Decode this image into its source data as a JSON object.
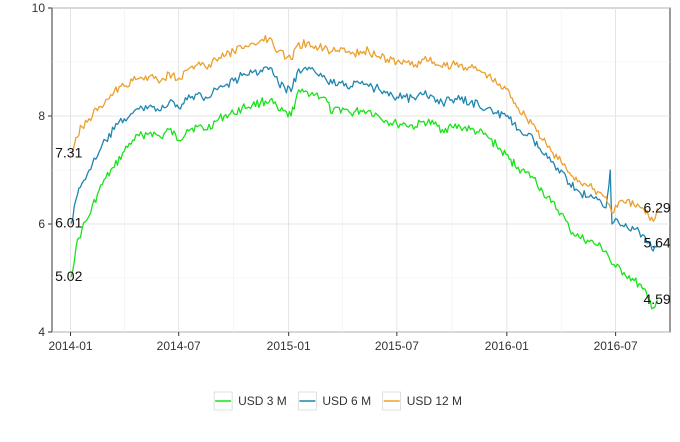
{
  "chart_data": {
    "type": "line",
    "title": "",
    "xlabel": "",
    "ylabel": "",
    "x_axis": {
      "type": "date",
      "range": [
        "2013-12-01",
        "2016-09-30"
      ],
      "ticks": [
        {
          "label": "2014-01",
          "date": "2014-01-01"
        },
        {
          "label": "2014-07",
          "date": "2014-07-01"
        },
        {
          "label": "2015-01",
          "date": "2015-01-01"
        },
        {
          "label": "2015-07",
          "date": "2015-07-01"
        },
        {
          "label": "2016-01",
          "date": "2016-01-01"
        },
        {
          "label": "2016-07",
          "date": "2016-07-01"
        }
      ]
    },
    "y_axis": {
      "range": [
        4,
        10
      ],
      "ticks": [
        4,
        6,
        8,
        10
      ]
    },
    "grid": true,
    "legend": "bottom",
    "series": [
      {
        "name": "USD 3 M",
        "color": "#19e319",
        "start_label": "5.02",
        "end_label": "4.59",
        "points": [
          [
            "2014-01-02",
            5.02
          ],
          [
            "2014-01-10",
            5.55
          ],
          [
            "2014-01-20",
            5.9
          ],
          [
            "2014-02-01",
            6.15
          ],
          [
            "2014-02-15",
            6.55
          ],
          [
            "2014-03-01",
            6.85
          ],
          [
            "2014-03-15",
            7.05
          ],
          [
            "2014-04-01",
            7.35
          ],
          [
            "2014-04-15",
            7.55
          ],
          [
            "2014-05-01",
            7.65
          ],
          [
            "2014-05-15",
            7.7
          ],
          [
            "2014-06-01",
            7.6
          ],
          [
            "2014-06-15",
            7.75
          ],
          [
            "2014-07-01",
            7.55
          ],
          [
            "2014-07-15",
            7.75
          ],
          [
            "2014-08-01",
            7.8
          ],
          [
            "2014-08-15",
            7.75
          ],
          [
            "2014-09-01",
            7.9
          ],
          [
            "2014-09-15",
            8.0
          ],
          [
            "2014-10-01",
            8.05
          ],
          [
            "2014-10-15",
            8.15
          ],
          [
            "2014-11-01",
            8.2
          ],
          [
            "2014-11-15",
            8.25
          ],
          [
            "2014-12-01",
            8.3
          ],
          [
            "2014-12-15",
            8.1
          ],
          [
            "2015-01-05",
            8.0
          ],
          [
            "2015-01-15",
            8.4
          ],
          [
            "2015-02-01",
            8.45
          ],
          [
            "2015-02-15",
            8.4
          ],
          [
            "2015-03-01",
            8.35
          ],
          [
            "2015-03-15",
            8.05
          ],
          [
            "2015-04-01",
            8.15
          ],
          [
            "2015-04-15",
            8.05
          ],
          [
            "2015-05-01",
            8.1
          ],
          [
            "2015-05-15",
            8.1
          ],
          [
            "2015-06-01",
            8.0
          ],
          [
            "2015-06-15",
            7.9
          ],
          [
            "2015-07-01",
            7.85
          ],
          [
            "2015-07-15",
            7.85
          ],
          [
            "2015-08-01",
            7.8
          ],
          [
            "2015-08-15",
            7.9
          ],
          [
            "2015-09-01",
            7.85
          ],
          [
            "2015-09-15",
            7.75
          ],
          [
            "2015-10-01",
            7.8
          ],
          [
            "2015-10-15",
            7.8
          ],
          [
            "2015-11-01",
            7.75
          ],
          [
            "2015-11-15",
            7.7
          ],
          [
            "2015-12-01",
            7.6
          ],
          [
            "2015-12-15",
            7.45
          ],
          [
            "2016-01-05",
            7.2
          ],
          [
            "2016-01-20",
            7.05
          ],
          [
            "2016-02-01",
            6.95
          ],
          [
            "2016-02-15",
            6.85
          ],
          [
            "2016-03-01",
            6.6
          ],
          [
            "2016-03-15",
            6.4
          ],
          [
            "2016-04-01",
            6.2
          ],
          [
            "2016-04-15",
            5.9
          ],
          [
            "2016-05-01",
            5.75
          ],
          [
            "2016-05-15",
            5.7
          ],
          [
            "2016-06-01",
            5.6
          ],
          [
            "2016-06-15",
            5.5
          ],
          [
            "2016-06-25",
            5.25
          ],
          [
            "2016-07-01",
            5.2
          ],
          [
            "2016-07-15",
            5.1
          ],
          [
            "2016-08-01",
            4.95
          ],
          [
            "2016-08-15",
            4.8
          ],
          [
            "2016-08-25",
            4.6
          ],
          [
            "2016-09-02",
            4.45
          ],
          [
            "2016-09-09",
            4.59
          ]
        ]
      },
      {
        "name": "USD 6 M",
        "color": "#1f86b0",
        "start_label": "6.01",
        "end_label": "5.64",
        "points": [
          [
            "2014-01-02",
            6.01
          ],
          [
            "2014-01-10",
            6.45
          ],
          [
            "2014-01-20",
            6.75
          ],
          [
            "2014-02-01",
            7.0
          ],
          [
            "2014-02-15",
            7.25
          ],
          [
            "2014-03-01",
            7.55
          ],
          [
            "2014-03-15",
            7.75
          ],
          [
            "2014-04-01",
            7.95
          ],
          [
            "2014-04-15",
            8.05
          ],
          [
            "2014-05-01",
            8.15
          ],
          [
            "2014-05-15",
            8.2
          ],
          [
            "2014-06-01",
            8.1
          ],
          [
            "2014-06-15",
            8.25
          ],
          [
            "2014-07-01",
            8.15
          ],
          [
            "2014-07-15",
            8.3
          ],
          [
            "2014-08-01",
            8.4
          ],
          [
            "2014-08-15",
            8.35
          ],
          [
            "2014-09-01",
            8.5
          ],
          [
            "2014-09-15",
            8.55
          ],
          [
            "2014-10-01",
            8.65
          ],
          [
            "2014-10-15",
            8.75
          ],
          [
            "2014-11-01",
            8.8
          ],
          [
            "2014-11-15",
            8.85
          ],
          [
            "2014-12-01",
            8.9
          ],
          [
            "2014-12-15",
            8.6
          ],
          [
            "2015-01-05",
            8.45
          ],
          [
            "2015-01-15",
            8.8
          ],
          [
            "2015-02-01",
            8.85
          ],
          [
            "2015-02-15",
            8.8
          ],
          [
            "2015-03-01",
            8.75
          ],
          [
            "2015-03-15",
            8.6
          ],
          [
            "2015-04-01",
            8.65
          ],
          [
            "2015-04-15",
            8.55
          ],
          [
            "2015-05-01",
            8.6
          ],
          [
            "2015-05-15",
            8.55
          ],
          [
            "2015-06-01",
            8.5
          ],
          [
            "2015-06-15",
            8.45
          ],
          [
            "2015-07-01",
            8.35
          ],
          [
            "2015-07-15",
            8.35
          ],
          [
            "2015-08-01",
            8.3
          ],
          [
            "2015-08-15",
            8.4
          ],
          [
            "2015-09-01",
            8.35
          ],
          [
            "2015-09-15",
            8.25
          ],
          [
            "2015-10-01",
            8.3
          ],
          [
            "2015-10-15",
            8.3
          ],
          [
            "2015-11-01",
            8.25
          ],
          [
            "2015-11-15",
            8.2
          ],
          [
            "2015-12-01",
            8.15
          ],
          [
            "2015-12-15",
            8.05
          ],
          [
            "2016-01-05",
            7.95
          ],
          [
            "2016-01-20",
            7.75
          ],
          [
            "2016-02-01",
            7.65
          ],
          [
            "2016-02-15",
            7.55
          ],
          [
            "2016-03-01",
            7.3
          ],
          [
            "2016-03-15",
            7.15
          ],
          [
            "2016-04-01",
            7.0
          ],
          [
            "2016-04-15",
            6.75
          ],
          [
            "2016-05-01",
            6.6
          ],
          [
            "2016-05-15",
            6.5
          ],
          [
            "2016-06-01",
            6.45
          ],
          [
            "2016-06-15",
            6.3
          ],
          [
            "2016-06-22",
            7.0
          ],
          [
            "2016-06-25",
            6.0
          ],
          [
            "2016-07-01",
            6.1
          ],
          [
            "2016-07-15",
            5.95
          ],
          [
            "2016-08-01",
            5.9
          ],
          [
            "2016-08-15",
            5.8
          ],
          [
            "2016-08-25",
            5.65
          ],
          [
            "2016-09-02",
            5.5
          ],
          [
            "2016-09-09",
            5.64
          ]
        ]
      },
      {
        "name": "USD 12 M",
        "color": "#eba02e",
        "start_label": "7.31",
        "end_label": "6.29",
        "points": [
          [
            "2014-01-02",
            7.31
          ],
          [
            "2014-01-10",
            7.6
          ],
          [
            "2014-01-20",
            7.8
          ],
          [
            "2014-02-01",
            7.95
          ],
          [
            "2014-02-15",
            8.1
          ],
          [
            "2014-03-01",
            8.3
          ],
          [
            "2014-03-15",
            8.45
          ],
          [
            "2014-04-01",
            8.55
          ],
          [
            "2014-04-15",
            8.65
          ],
          [
            "2014-05-01",
            8.7
          ],
          [
            "2014-05-15",
            8.75
          ],
          [
            "2014-06-01",
            8.65
          ],
          [
            "2014-06-15",
            8.8
          ],
          [
            "2014-07-01",
            8.7
          ],
          [
            "2014-07-15",
            8.85
          ],
          [
            "2014-08-01",
            8.95
          ],
          [
            "2014-08-15",
            8.9
          ],
          [
            "2014-09-01",
            9.05
          ],
          [
            "2014-09-15",
            9.1
          ],
          [
            "2014-10-01",
            9.2
          ],
          [
            "2014-10-15",
            9.25
          ],
          [
            "2014-11-01",
            9.35
          ],
          [
            "2014-11-15",
            9.4
          ],
          [
            "2014-12-01",
            9.45
          ],
          [
            "2014-12-15",
            9.2
          ],
          [
            "2015-01-05",
            9.05
          ],
          [
            "2015-01-15",
            9.3
          ],
          [
            "2015-02-01",
            9.35
          ],
          [
            "2015-02-15",
            9.3
          ],
          [
            "2015-03-01",
            9.25
          ],
          [
            "2015-03-15",
            9.2
          ],
          [
            "2015-04-01",
            9.25
          ],
          [
            "2015-04-15",
            9.15
          ],
          [
            "2015-05-01",
            9.2
          ],
          [
            "2015-05-15",
            9.2
          ],
          [
            "2015-06-01",
            9.1
          ],
          [
            "2015-06-15",
            9.05
          ],
          [
            "2015-07-01",
            9.0
          ],
          [
            "2015-07-15",
            9.0
          ],
          [
            "2015-08-01",
            8.95
          ],
          [
            "2015-08-15",
            9.05
          ],
          [
            "2015-09-01",
            9.0
          ],
          [
            "2015-09-15",
            8.9
          ],
          [
            "2015-10-01",
            8.95
          ],
          [
            "2015-10-15",
            8.95
          ],
          [
            "2015-11-01",
            8.9
          ],
          [
            "2015-11-15",
            8.85
          ],
          [
            "2015-12-01",
            8.75
          ],
          [
            "2015-12-15",
            8.6
          ],
          [
            "2016-01-05",
            8.45
          ],
          [
            "2016-01-20",
            8.15
          ],
          [
            "2016-02-01",
            8.0
          ],
          [
            "2016-02-15",
            7.85
          ],
          [
            "2016-03-01",
            7.55
          ],
          [
            "2016-03-15",
            7.35
          ],
          [
            "2016-04-01",
            7.15
          ],
          [
            "2016-04-15",
            6.95
          ],
          [
            "2016-05-01",
            6.8
          ],
          [
            "2016-05-15",
            6.7
          ],
          [
            "2016-06-01",
            6.6
          ],
          [
            "2016-06-15",
            6.5
          ],
          [
            "2016-06-25",
            6.2
          ],
          [
            "2016-07-01",
            6.35
          ],
          [
            "2016-07-15",
            6.4
          ],
          [
            "2016-08-01",
            6.35
          ],
          [
            "2016-08-15",
            6.3
          ],
          [
            "2016-08-25",
            6.15
          ],
          [
            "2016-09-02",
            6.05
          ],
          [
            "2016-09-09",
            6.29
          ]
        ]
      }
    ]
  }
}
